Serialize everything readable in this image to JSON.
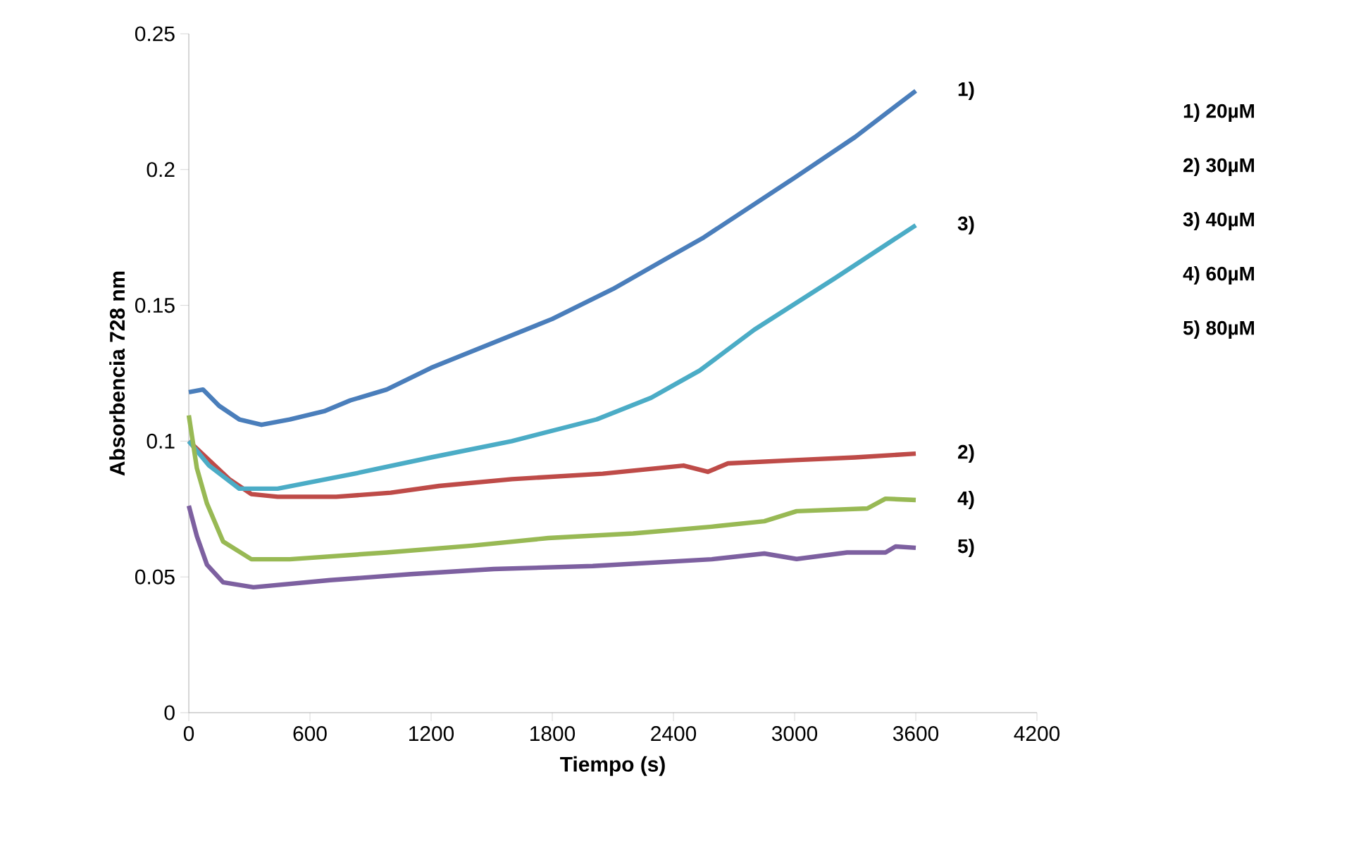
{
  "chart_data": {
    "type": "line",
    "xlabel": "Tiempo (s)",
    "ylabel": "Absorbencia 728 nm",
    "xlim": [
      0,
      4200
    ],
    "xticks": [
      0,
      600,
      1200,
      1800,
      2400,
      3000,
      3600,
      4200
    ],
    "ylim": [
      0,
      0.25
    ],
    "yticks": [
      0,
      0.05,
      0.1,
      0.15,
      0.2,
      0.25
    ],
    "grid": false,
    "legend": false,
    "marker": "none",
    "line_style": "solid",
    "annotations": [
      "1) 20µM",
      "2) 30µM",
      "3) 40µM",
      "4) 60µM",
      "5) 80µM"
    ],
    "series": [
      {
        "name": "1)",
        "color": "#4a7ebb",
        "x": [
          0,
          70,
          150,
          250,
          360,
          500,
          670,
          800,
          980,
          1200,
          1500,
          1800,
          2100,
          2360,
          2550,
          3000,
          3300,
          3600
        ],
        "values": [
          0.118,
          0.119,
          0.113,
          0.108,
          0.106,
          0.108,
          0.111,
          0.115,
          0.119,
          0.127,
          0.136,
          0.145,
          0.156,
          0.167,
          0.175,
          0.197,
          0.212,
          0.229
        ]
      },
      {
        "name": "2)",
        "color": "#be4b48",
        "x": [
          0,
          100,
          200,
          310,
          440,
          730,
          1000,
          1240,
          1600,
          2050,
          2450,
          2570,
          2670,
          3000,
          3300,
          3600
        ],
        "values": [
          0.1,
          0.093,
          0.086,
          0.0805,
          0.0795,
          0.0795,
          0.081,
          0.0835,
          0.086,
          0.088,
          0.091,
          0.0887,
          0.0918,
          0.093,
          0.094,
          0.0954
        ]
      },
      {
        "name": "3)",
        "color": "#4bacc6",
        "x": [
          0,
          100,
          250,
          440,
          820,
          1200,
          1600,
          2020,
          2290,
          2410,
          2530,
          2800,
          3200,
          3600
        ],
        "values": [
          0.1,
          0.091,
          0.0825,
          0.0825,
          0.088,
          0.094,
          0.1,
          0.108,
          0.116,
          0.121,
          0.126,
          0.141,
          0.16,
          0.1795
        ]
      },
      {
        "name": "4)",
        "color": "#98b954",
        "x": [
          0,
          40,
          90,
          170,
          310,
          500,
          980,
          1400,
          1780,
          2200,
          2590,
          2850,
          3010,
          3360,
          3450,
          3600
        ],
        "values": [
          0.1095,
          0.09,
          0.077,
          0.063,
          0.0565,
          0.0565,
          0.059,
          0.0615,
          0.0643,
          0.066,
          0.0685,
          0.0705,
          0.0742,
          0.0752,
          0.0788,
          0.0783
        ]
      },
      {
        "name": "5)",
        "color": "#7d60a0",
        "x": [
          0,
          40,
          90,
          170,
          320,
          700,
          1100,
          1510,
          2000,
          2590,
          2850,
          3010,
          3260,
          3450,
          3500,
          3600
        ],
        "values": [
          0.0762,
          0.065,
          0.0545,
          0.048,
          0.0462,
          0.0488,
          0.051,
          0.0529,
          0.054,
          0.0565,
          0.0586,
          0.0566,
          0.059,
          0.059,
          0.0612,
          0.0607
        ]
      }
    ]
  }
}
